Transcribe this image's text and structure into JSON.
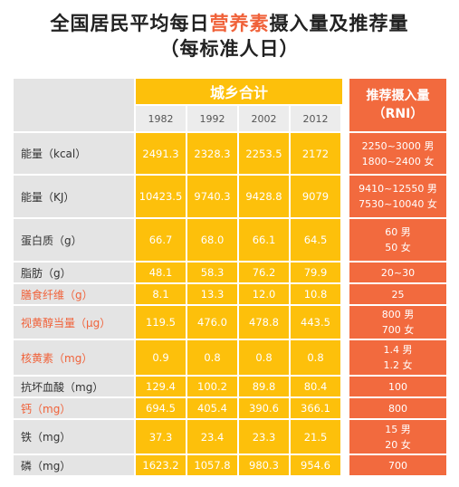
{
  "title": {
    "part1": "全国居民平均每日",
    "highlight": "营养素",
    "part2": "摄入量及推荐量",
    "line2": "（每标准人日）"
  },
  "header": {
    "group_label": "城乡合计",
    "years": [
      "1982",
      "1992",
      "2002",
      "2012"
    ],
    "rni_line1": "推荐摄入量",
    "rni_line2": "（RNI）"
  },
  "rows": [
    {
      "label": "能量（kcal）",
      "values": [
        "2491.3",
        "2328.3",
        "2253.5",
        "2172"
      ],
      "rni": [
        "2250~3000 男",
        "1800~2400 女"
      ]
    },
    {
      "label": "能量（KJ）",
      "values": [
        "10423.5",
        "9740.3",
        "9428.8",
        "9079"
      ],
      "rni": [
        "9410~12550 男",
        "7530~10040 女"
      ]
    },
    {
      "label": "蛋白质（g）",
      "values": [
        "66.7",
        "68.0",
        "66.1",
        "64.5"
      ],
      "rni": [
        "60 男",
        "50 女"
      ]
    },
    {
      "label": "脂肪（g）",
      "values": [
        "48.1",
        "58.3",
        "76.2",
        "79.9"
      ],
      "rni": [
        "20~30"
      ]
    },
    {
      "label": "膳食纤维（g）",
      "values": [
        "8.1",
        "13.3",
        "12.0",
        "10.8"
      ],
      "rni": [
        "25"
      ]
    },
    {
      "label": "视黄醇当量（μg）",
      "values": [
        "119.5",
        "476.0",
        "478.8",
        "443.5"
      ],
      "rni": [
        "800 男",
        "700 女"
      ]
    },
    {
      "label": "核黄素（mg）",
      "values": [
        "0.9",
        "0.8",
        "0.8",
        "0.8"
      ],
      "rni": [
        "1.4 男",
        "1.2 女"
      ]
    },
    {
      "label": "抗坏血酸（mg）",
      "values": [
        "129.4",
        "100.2",
        "89.8",
        "80.4"
      ],
      "rni": [
        "100"
      ]
    },
    {
      "label": "钙（mg）",
      "values": [
        "694.5",
        "405.4",
        "390.6",
        "366.1"
      ],
      "rni": [
        "800"
      ]
    },
    {
      "label": "铁（mg）",
      "values": [
        "37.3",
        "23.4",
        "23.3",
        "21.5"
      ],
      "rni": [
        "15 男",
        "20 女"
      ]
    },
    {
      "label": "磷（mg）",
      "values": [
        "1623.2",
        "1057.8",
        "980.3",
        "954.6"
      ],
      "rni": [
        "700"
      ]
    }
  ],
  "colors": {
    "label_bg": "#e4e4e4",
    "value_bg": "#fdc00b",
    "rni_bg": "#f26a3e",
    "highlight_text": "#f0623a"
  },
  "red_label_rows": [
    4,
    5,
    6,
    8
  ]
}
